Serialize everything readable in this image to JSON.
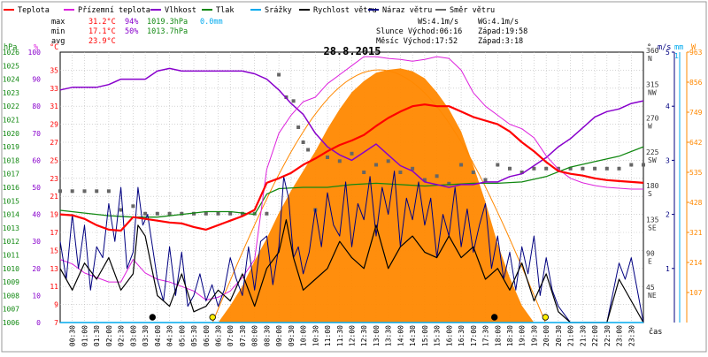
{
  "title": "28.8.2015",
  "legend": [
    {
      "label": "Teplota",
      "color": "#ff0000",
      "style": "line"
    },
    {
      "label": "Přízemní teplota",
      "color": "#dd22dd",
      "style": "line"
    },
    {
      "label": "Vlhkost",
      "color": "#8800cc",
      "style": "line"
    },
    {
      "label": "Tlak",
      "color": "#118811",
      "style": "line"
    },
    {
      "label": "Srážky",
      "color": "#00aaee",
      "style": "line"
    },
    {
      "label": "Rychlost větru",
      "color": "#000000",
      "style": "line"
    },
    {
      "label": "Náraz větru",
      "color": "#000080",
      "style": "line"
    },
    {
      "label": "Směr větru",
      "color": "#666666",
      "style": "line"
    }
  ],
  "stats": {
    "max": {
      "label": "max",
      "temp": "31.2°C",
      "hum": "94%",
      "press": "1019.3hPa",
      "rain": "0.0mm"
    },
    "min": {
      "label": "min",
      "temp": "17.1°C",
      "hum": "50%",
      "press": "1013.7hPa"
    },
    "avg": {
      "label": "avg",
      "temp": "23.9°C"
    }
  },
  "wind_info": {
    "ws": "WS:4.1m/s",
    "wg": "WG:4.1m/s",
    "sun": "Slunce Východ:06:16",
    "sun_set": "Západ:19:58",
    "moon": "Měsíc Východ:17:52",
    "moon_set": "Západ:3:18"
  },
  "axes": {
    "hpa_title": "hPa",
    "pct_title": "%",
    "temp_title": "°C",
    "dir_title": "°",
    "ms_title": "m/s",
    "mm_title": "mm",
    "w_title": "W",
    "x_title": "čas",
    "hpa_ticks": [
      "1026",
      "1025",
      "1024",
      "1023",
      "1022",
      "1021",
      "1020",
      "1019",
      "1018",
      "1017",
      "1016",
      "1015",
      "1014",
      "1013",
      "1012",
      "1011",
      "1010",
      "1009",
      "1008",
      "1007",
      "1006"
    ],
    "pct_ticks": [
      "100",
      "90",
      "80",
      "70",
      "60",
      "50",
      "40",
      "30",
      "20",
      "10",
      "0"
    ],
    "temp_ticks": [
      "35",
      "33",
      "31",
      "29",
      "27",
      "25",
      "23",
      "21",
      "19",
      "17",
      "15",
      "13",
      "11",
      "9",
      "7"
    ],
    "dir_ticks": [
      {
        "deg": "360",
        "dir": "N"
      },
      {
        "deg": "315",
        "dir": "NW"
      },
      {
        "deg": "270",
        "dir": "W"
      },
      {
        "deg": "225",
        "dir": "SW"
      },
      {
        "deg": "180",
        "dir": "S"
      },
      {
        "deg": "135",
        "dir": "SE"
      },
      {
        "deg": "90",
        "dir": "E"
      },
      {
        "deg": "45",
        "dir": "NE"
      }
    ],
    "ms_ticks": [
      "5",
      "4",
      "3",
      "2",
      "1"
    ],
    "mm_ticks": [
      "1"
    ],
    "w_ticks": [
      "963",
      "856",
      "749",
      "642",
      "535",
      "428",
      "321",
      "214",
      "107"
    ],
    "time_ticks": [
      "00:30",
      "01:00",
      "01:30",
      "02:00",
      "02:30",
      "03:00",
      "03:30",
      "04:00",
      "04:30",
      "05:00",
      "05:30",
      "06:00",
      "06:30",
      "07:00",
      "07:30",
      "08:00",
      "08:30",
      "09:00",
      "09:30",
      "10:00",
      "10:30",
      "11:00",
      "11:30",
      "12:00",
      "12:30",
      "13:00",
      "13:30",
      "14:00",
      "14:30",
      "15:00",
      "15:30",
      "16:00",
      "16:30",
      "17:00",
      "17:30",
      "18:00",
      "18:30",
      "19:00",
      "19:30",
      "20:00",
      "20:30",
      "21:00",
      "21:30",
      "22:00",
      "22:30",
      "23:00",
      "23:30"
    ]
  },
  "colors": {
    "temp": "#ff0000",
    "ground_temp": "#dd22dd",
    "humidity": "#8800cc",
    "pressure": "#118811",
    "rain": "#00aaee",
    "wind": "#000000",
    "gust": "#000080",
    "direction": "#666666",
    "solar": "#ff8800",
    "solar_theory": "#ff8800",
    "grid": "#bbbbbb"
  },
  "chart_data": {
    "type": "line",
    "x_unit": "hour",
    "xlim": [
      0,
      24
    ],
    "temp_ylim": [
      7,
      37
    ],
    "humidity_ylim": [
      0,
      100
    ],
    "pressure_ylim": [
      1006,
      1026
    ],
    "direction_ylim": [
      0,
      360
    ],
    "wind_ylim": [
      0,
      5
    ],
    "solar_ylim": [
      0,
      963
    ],
    "series": [
      {
        "name": "Teplota",
        "x": [
          0,
          0.5,
          1,
          1.5,
          2,
          2.5,
          3,
          3.5,
          4,
          4.5,
          5,
          5.5,
          6,
          6.5,
          7,
          7.5,
          8,
          8.5,
          9,
          9.5,
          10,
          10.5,
          11,
          11.5,
          12,
          12.5,
          13,
          13.5,
          14,
          14.5,
          15,
          15.5,
          16,
          16.5,
          17,
          17.5,
          18,
          18.5,
          19,
          19.5,
          20,
          20.5,
          21,
          21.5,
          22,
          22.5,
          23,
          23.5,
          24
        ],
        "y": [
          19.0,
          18.9,
          18.5,
          17.8,
          17.3,
          17.2,
          18.7,
          18.5,
          18.3,
          18.1,
          18.0,
          17.6,
          17.3,
          17.8,
          18.3,
          18.8,
          19.5,
          22.5,
          23.0,
          23.6,
          24.5,
          25.2,
          26.0,
          26.7,
          27.2,
          27.8,
          28.8,
          29.7,
          30.4,
          31.0,
          31.2,
          31.0,
          31.0,
          30.4,
          29.8,
          29.4,
          29.0,
          28.2,
          27.0,
          26.0,
          24.8,
          23.8,
          23.5,
          23.3,
          23.0,
          22.8,
          22.7,
          22.6,
          22.5
        ]
      },
      {
        "name": "Přízemní teplota",
        "x": [
          0,
          0.5,
          1,
          1.5,
          2,
          2.5,
          3,
          3.5,
          4,
          4.5,
          5,
          5.5,
          6,
          6.5,
          7,
          7.5,
          8,
          8.5,
          9,
          9.5,
          10,
          10.5,
          11,
          11.5,
          12,
          12.5,
          13,
          13.5,
          14,
          14.5,
          15,
          15.5,
          16,
          16.5,
          17,
          17.5,
          18,
          18.5,
          19,
          19.5,
          20,
          20.5,
          21,
          21.5,
          22,
          22.5,
          23,
          23.5,
          24
        ],
        "y": [
          14.0,
          13.5,
          12.5,
          12.0,
          11.5,
          11.5,
          14.0,
          12.5,
          11.8,
          11.5,
          11.0,
          10.5,
          9.5,
          9.8,
          10.5,
          12.0,
          14.0,
          24.0,
          28.0,
          30.0,
          31.5,
          32.0,
          33.5,
          34.5,
          35.5,
          36.5,
          36.5,
          36.3,
          36.2,
          36.0,
          36.2,
          36.5,
          36.3,
          35.0,
          32.5,
          31.0,
          30.0,
          29.0,
          28.5,
          27.5,
          25.5,
          24.0,
          23.0,
          22.5,
          22.2,
          22.0,
          21.9,
          21.8,
          21.8
        ]
      },
      {
        "name": "Vlhkost",
        "x": [
          0,
          0.5,
          1,
          1.5,
          2,
          2.5,
          3,
          3.5,
          4,
          4.5,
          5,
          5.5,
          6,
          6.5,
          7,
          7.5,
          8,
          8.5,
          9,
          9.5,
          10,
          10.5,
          11,
          11.5,
          12,
          12.5,
          13,
          13.5,
          14,
          14.5,
          15,
          15.5,
          16,
          16.5,
          17,
          17.5,
          18,
          18.5,
          19,
          19.5,
          20,
          20.5,
          21,
          21.5,
          22,
          22.5,
          23,
          23.5,
          24
        ],
        "y": [
          86,
          87,
          87,
          87,
          88,
          90,
          90,
          90,
          93,
          94,
          93,
          93,
          93,
          93,
          93,
          93,
          92,
          90,
          86,
          81,
          77,
          70,
          65,
          62,
          60,
          63,
          66,
          62,
          58,
          56,
          52,
          51,
          50,
          51,
          51,
          52,
          52,
          54,
          55,
          58,
          61,
          65,
          68,
          72,
          76,
          78,
          79,
          81,
          82
        ]
      },
      {
        "name": "Tlak",
        "x": [
          0,
          1,
          2,
          3,
          4,
          5,
          6,
          7,
          8,
          8.5,
          9,
          10,
          11,
          12,
          13,
          14,
          15,
          16,
          17,
          18,
          19,
          20,
          21,
          22,
          23,
          24
        ],
        "y": [
          1014.3,
          1014.1,
          1013.9,
          1013.8,
          1013.8,
          1014.0,
          1014.2,
          1014.2,
          1014.0,
          1015.5,
          1015.9,
          1016.0,
          1016.0,
          1016.2,
          1016.3,
          1016.2,
          1016.1,
          1016.2,
          1016.3,
          1016.3,
          1016.4,
          1016.8,
          1017.5,
          1017.9,
          1018.3,
          1019.0
        ]
      },
      {
        "name": "Srážky",
        "x": [
          0,
          24
        ],
        "y": [
          0,
          0
        ]
      },
      {
        "name": "Rychlost větru",
        "x": [
          0,
          0.5,
          1,
          1.5,
          2,
          2.5,
          3,
          3.2,
          3.5,
          4,
          4.5,
          5,
          5.5,
          6,
          6.5,
          7,
          7.5,
          8,
          8.5,
          9,
          9.3,
          9.6,
          10,
          10.5,
          11,
          11.5,
          12,
          12.5,
          13,
          13.5,
          14,
          14.5,
          15,
          15.5,
          16,
          16.5,
          17,
          17.5,
          18,
          18.5,
          19,
          19.5,
          20,
          20.5,
          21,
          21.5,
          22,
          22.5,
          23,
          23.5,
          24
        ],
        "y": [
          1.0,
          0.6,
          1.1,
          0.8,
          1.2,
          0.6,
          0.9,
          1.8,
          1.6,
          0.5,
          0.3,
          0.9,
          0.2,
          0.3,
          0.6,
          0.4,
          0.9,
          0.3,
          1.0,
          1.3,
          1.9,
          1.2,
          0.6,
          0.8,
          1.0,
          1.5,
          1.2,
          1.0,
          1.8,
          1.0,
          1.4,
          1.6,
          1.3,
          1.2,
          1.6,
          1.2,
          1.4,
          0.8,
          1.0,
          0.6,
          1.1,
          0.4,
          0.9,
          0.2,
          0.0,
          0.0,
          0.0,
          0.0,
          0.8,
          0.4,
          0.0
        ]
      },
      {
        "name": "Náraz větru",
        "x": [
          0,
          0.25,
          0.5,
          0.75,
          1,
          1.25,
          1.5,
          1.75,
          2,
          2.25,
          2.5,
          2.75,
          3,
          3.2,
          3.4,
          3.6,
          3.8,
          4,
          4.25,
          4.5,
          4.75,
          5,
          5.25,
          5.5,
          5.75,
          6,
          6.25,
          6.5,
          6.75,
          7,
          7.25,
          7.5,
          7.75,
          8,
          8.25,
          8.5,
          8.75,
          9,
          9.2,
          9.4,
          9.6,
          9.8,
          10,
          10.25,
          10.5,
          10.75,
          11,
          11.25,
          11.5,
          11.75,
          12,
          12.25,
          12.5,
          12.75,
          13,
          13.25,
          13.5,
          13.75,
          14,
          14.25,
          14.5,
          14.75,
          15,
          15.25,
          15.5,
          15.75,
          16,
          16.25,
          16.5,
          16.75,
          17,
          17.25,
          17.5,
          17.75,
          18,
          18.25,
          18.5,
          18.75,
          19,
          19.25,
          19.5,
          19.75,
          20,
          20.25,
          20.5,
          21,
          21.5,
          22,
          22.5,
          23,
          23.25,
          23.5,
          24
        ],
        "y": [
          1.5,
          0.8,
          2.0,
          1.0,
          1.8,
          0.6,
          1.4,
          1.2,
          2.2,
          1.5,
          2.5,
          1.0,
          1.3,
          2.5,
          1.8,
          2.0,
          1.4,
          0.8,
          0.4,
          1.4,
          0.5,
          1.3,
          0.3,
          0.5,
          0.9,
          0.4,
          0.7,
          0.3,
          0.6,
          1.2,
          0.8,
          0.5,
          1.4,
          0.6,
          1.5,
          1.6,
          0.7,
          1.4,
          2.7,
          2.3,
          1.2,
          1.4,
          0.9,
          1.3,
          2.1,
          1.4,
          2.4,
          1.8,
          1.6,
          2.6,
          1.4,
          2.2,
          1.9,
          2.7,
          1.6,
          2.5,
          2.0,
          2.8,
          1.4,
          2.3,
          1.9,
          2.6,
          1.8,
          2.3,
          1.2,
          2.0,
          1.6,
          2.5,
          1.4,
          2.1,
          1.3,
          1.8,
          2.2,
          1.0,
          1.6,
          0.8,
          1.3,
          0.6,
          1.4,
          0.9,
          1.6,
          0.5,
          1.2,
          0.6,
          0.3,
          0.0,
          0.0,
          0.0,
          0.0,
          1.1,
          0.8,
          1.2,
          0.0
        ]
      },
      {
        "name": "Směr větru",
        "x": [
          0,
          0.5,
          1,
          1.5,
          2,
          2.5,
          3,
          3.5,
          4,
          4.5,
          5,
          5.5,
          6,
          6.5,
          7,
          7.5,
          8,
          8.5,
          9,
          9.3,
          9.6,
          9.8,
          10,
          10.2,
          10.5,
          11,
          11.5,
          12,
          12.5,
          13,
          13.5,
          14,
          14.5,
          15,
          15.5,
          16,
          16.5,
          17,
          17.5,
          18,
          18.5,
          19,
          19.5,
          20,
          20.5,
          21,
          21.5,
          22,
          22.5,
          23,
          23.5,
          24
        ],
        "y": [
          175,
          175,
          175,
          175,
          175,
          150,
          155,
          145,
          145,
          145,
          145,
          145,
          145,
          145,
          145,
          145,
          145,
          145,
          330,
          300,
          295,
          260,
          240,
          230,
          150,
          220,
          215,
          225,
          200,
          210,
          215,
          200,
          205,
          190,
          195,
          185,
          210,
          200,
          190,
          210,
          205,
          200,
          205,
          205,
          205,
          205,
          205,
          205,
          205,
          205,
          210,
          210
        ]
      },
      {
        "name": "Sluneční záření",
        "x": [
          6.5,
          7,
          7.5,
          8,
          8.5,
          9,
          9.5,
          10,
          10.5,
          11,
          11.5,
          12,
          12.5,
          13,
          13.5,
          14,
          14.5,
          15,
          15.5,
          16,
          16.5,
          17,
          17.5,
          18,
          18.5,
          19,
          19.5
        ],
        "y": [
          0,
          60,
          130,
          220,
          300,
          390,
          470,
          540,
          610,
          690,
          760,
          820,
          860,
          890,
          900,
          905,
          895,
          870,
          820,
          760,
          680,
          560,
          430,
          280,
          160,
          60,
          0
        ]
      }
    ]
  }
}
